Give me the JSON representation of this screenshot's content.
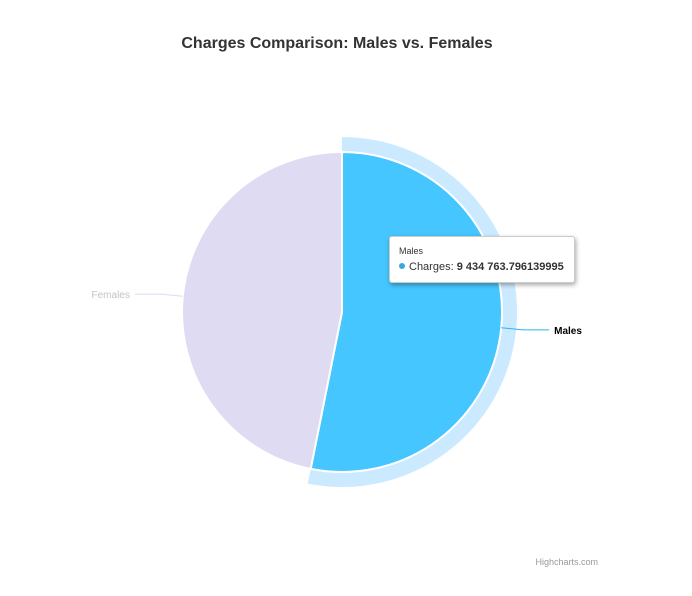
{
  "colors": {
    "males": "#45c6ff",
    "males_halo": "#cbeaff",
    "females": "#dedbf2",
    "females_label": "#c4c4c4",
    "males_label": "#000000",
    "males_connector": "#2fb4f0",
    "tooltip_dot": "#3aa7e0"
  },
  "chart_data": {
    "type": "pie",
    "title": "Charges Comparison: Males vs. Females",
    "slices": [
      {
        "name": "Males",
        "value": 9434763.796139995
      },
      {
        "name": "Females",
        "value": 8321061.194618995
      }
    ],
    "hovered": "Males"
  },
  "tooltip": {
    "header": "Males",
    "series_label": "Charges: ",
    "value_text": "9 434 763.796139995"
  },
  "credits": "Highcharts.com"
}
